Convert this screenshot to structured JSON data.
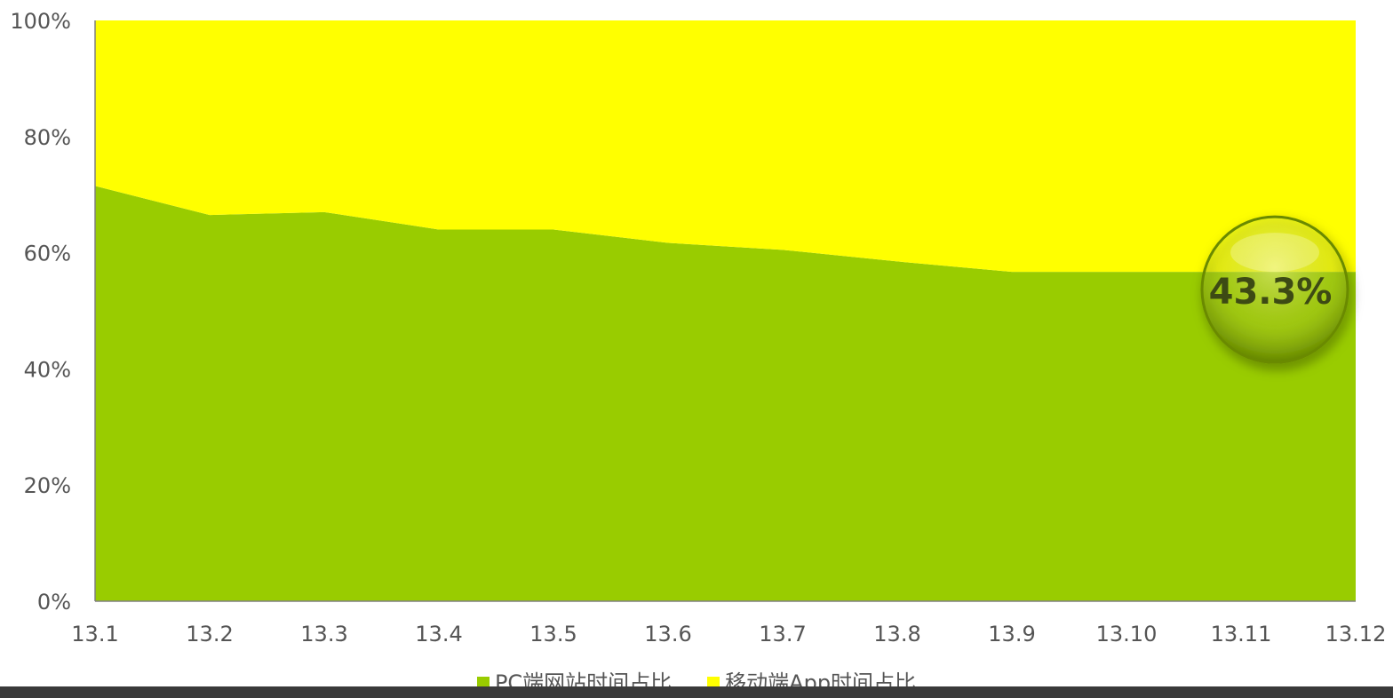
{
  "chart_data": {
    "type": "area",
    "stacked": "percent",
    "categories": [
      "13.1",
      "13.2",
      "13.3",
      "13.4",
      "13.5",
      "13.6",
      "13.7",
      "13.8",
      "13.9",
      "13.10",
      "13.11",
      "13.12"
    ],
    "series": [
      {
        "name": "PC端网站时间占比",
        "color": "#99cc00",
        "values": [
          71.5,
          66.5,
          67,
          64,
          64,
          61.7,
          60.5,
          58.5,
          56.7,
          56.7,
          56.7,
          56.7
        ]
      },
      {
        "name": "移动端App时间占比",
        "color": "#ffff00",
        "values": [
          28.5,
          33.5,
          33,
          36,
          36,
          38.3,
          39.5,
          41.5,
          43.3,
          43.3,
          43.3,
          43.3
        ]
      }
    ],
    "ylim": [
      0,
      100
    ],
    "yticks": [
      "0%",
      "20%",
      "40%",
      "60%",
      "80%",
      "100%"
    ],
    "grid": false,
    "legend_position": "bottom",
    "callout": {
      "text": "43.3%",
      "category": "13.11"
    }
  }
}
